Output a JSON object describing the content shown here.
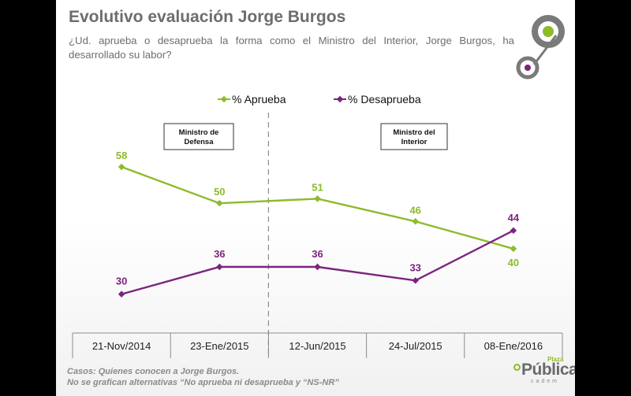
{
  "slide": {
    "title": "Evolutivo evaluación Jorge Burgos",
    "subtitle": "¿Ud. aprueba o desaprueba la forma como el Ministro del Interior, Jorge Burgos, ha desarrollado su labor?",
    "footnote_lines": [
      "Casos: Quienes conocen a Jorge Burgos.",
      "No se grafican alternativas “No aprueba ni desaprueba y “NS-NR”"
    ],
    "logo": {
      "main": "Pública",
      "top": "Plaza",
      "sub": "cadem"
    }
  },
  "chart_data": {
    "type": "line",
    "categories": [
      "21-Nov/2014",
      "23-Ene/2015",
      "12-Jun/2015",
      "24-Jul/2015",
      "08-Ene/2016"
    ],
    "series": [
      {
        "name": "% Aprueba",
        "color": "#8dbb2b",
        "values": [
          58,
          50,
          51,
          46,
          40
        ]
      },
      {
        "name": "% Desaprueba",
        "color": "#7b247f",
        "values": [
          30,
          36,
          36,
          33,
          44
        ]
      }
    ],
    "annotations": [
      {
        "text": "Ministro de Defensa"
      },
      {
        "text": "Ministro del Interior"
      }
    ],
    "divider_between_categories": [
      1,
      2
    ],
    "ylim": [
      20,
      65
    ],
    "grid": false,
    "legend_position": "top-center",
    "colors": {
      "circle_accent": "#8dbb2b",
      "circle_gray": "#7a7a7a",
      "dot_purple": "#7b247f"
    }
  }
}
